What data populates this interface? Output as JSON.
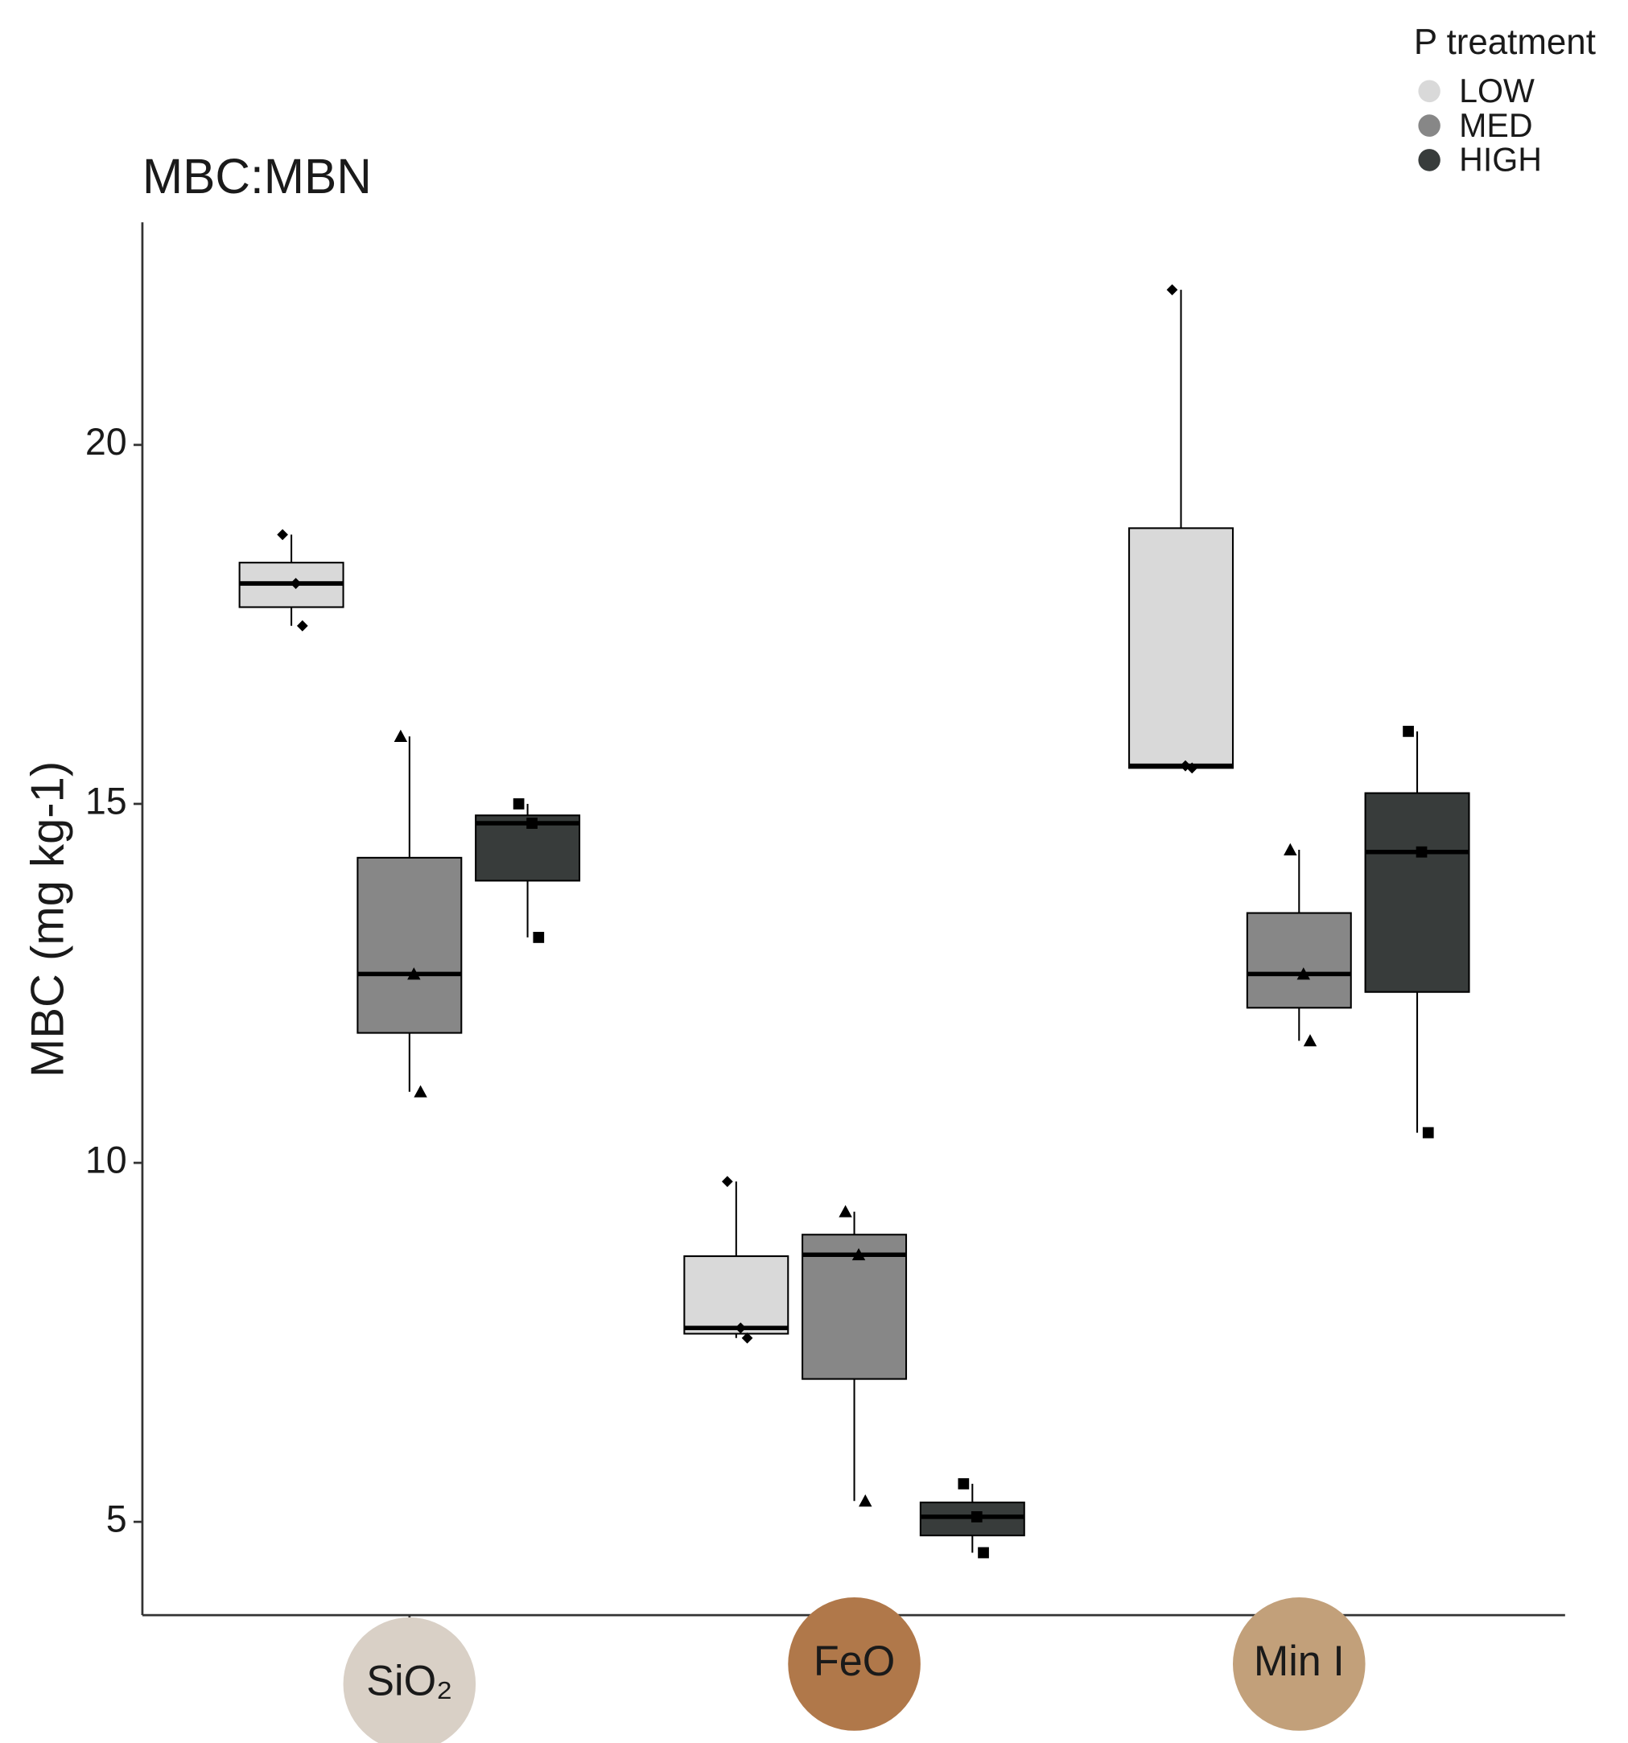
{
  "chart_data": {
    "type": "box",
    "title": "MBC:MBN",
    "y_label": "MBC (mg kg-1)",
    "legend_title": "P treatment",
    "legend_position": "top-right",
    "categories": [
      "SiO₂",
      "FeO",
      "Min I"
    ],
    "category_colors": [
      "#d9d0c6",
      "#b0784a",
      "#c2a07a"
    ],
    "ylim": [
      3.7,
      23.1
    ],
    "yticks": [
      5,
      10,
      15,
      20
    ],
    "series": [
      {
        "name": "LOW",
        "color": "#d9d9d9",
        "marker": "diamond",
        "boxes": [
          {
            "min": 17.48,
            "q1": 17.74,
            "median": 18.07,
            "q3": 18.36,
            "max": 18.75
          },
          {
            "min": 7.56,
            "q1": 7.62,
            "median": 7.7,
            "q3": 8.7,
            "max": 9.74
          },
          {
            "min": 15.5,
            "q1": 15.5,
            "median": 15.53,
            "q3": 18.84,
            "max": 22.16
          }
        ],
        "points": [
          [
            18.75,
            18.07,
            17.48
          ],
          [
            9.74,
            7.7,
            7.56
          ],
          [
            22.16,
            15.53,
            15.5
          ]
        ]
      },
      {
        "name": "MED",
        "color": "#878787",
        "marker": "triangle",
        "boxes": [
          {
            "min": 10.99,
            "q1": 11.81,
            "median": 12.63,
            "q3": 14.25,
            "max": 15.94
          },
          {
            "min": 5.29,
            "q1": 6.99,
            "median": 8.72,
            "q3": 9.0,
            "max": 9.32
          },
          {
            "min": 11.7,
            "q1": 12.16,
            "median": 12.63,
            "q3": 13.48,
            "max": 14.36
          }
        ],
        "points": [
          [
            15.94,
            12.63,
            10.99
          ],
          [
            9.32,
            8.72,
            5.29
          ],
          [
            14.36,
            12.63,
            11.7
          ]
        ]
      },
      {
        "name": "HIGH",
        "color": "#383c3b",
        "marker": "square",
        "boxes": [
          {
            "min": 13.14,
            "q1": 13.93,
            "median": 14.73,
            "q3": 14.84,
            "max": 15.0
          },
          {
            "min": 4.57,
            "q1": 4.81,
            "median": 5.07,
            "q3": 5.27,
            "max": 5.53
          },
          {
            "min": 10.42,
            "q1": 12.38,
            "median": 14.33,
            "q3": 15.15,
            "max": 16.01
          }
        ],
        "points": [
          [
            15.0,
            14.73,
            13.14
          ],
          [
            5.53,
            5.07,
            4.57
          ],
          [
            16.01,
            14.33,
            10.42
          ]
        ]
      }
    ]
  }
}
